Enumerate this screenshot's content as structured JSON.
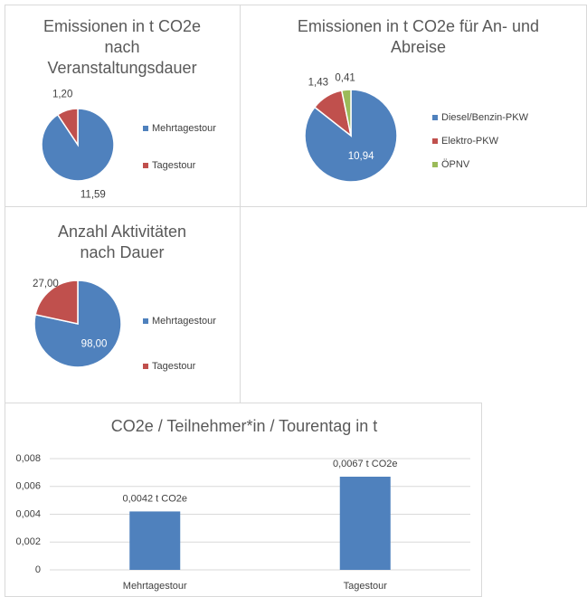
{
  "chart_data": [
    {
      "type": "pie",
      "title": "Emissionen in t CO2e nach Veranstaltungsdauer",
      "categories": [
        "Mehrtagestour",
        "Tagestour"
      ],
      "values": [
        11.59,
        1.2
      ],
      "value_labels": [
        "11,59",
        "1,20"
      ],
      "colors": [
        "#4f81bd",
        "#c0504d"
      ],
      "legend": "right"
    },
    {
      "type": "pie",
      "title": "Emissionen in t CO2e für An- und Abreise",
      "categories": [
        "Diesel/Benzin-PKW",
        "Elektro-PKW",
        "ÖPNV"
      ],
      "values": [
        10.94,
        1.43,
        0.41
      ],
      "value_labels": [
        "10,94",
        "1,43",
        "0,41"
      ],
      "colors": [
        "#4f81bd",
        "#c0504d",
        "#9bbb59"
      ],
      "legend": "right"
    },
    {
      "type": "pie",
      "title": "Anzahl Aktivitäten nach Dauer",
      "categories": [
        "Mehrtagestour",
        "Tagestour"
      ],
      "values": [
        98,
        27
      ],
      "value_labels": [
        "98,00",
        "27,00"
      ],
      "colors": [
        "#4f81bd",
        "#c0504d"
      ],
      "legend": "right"
    },
    {
      "type": "bar",
      "title": "CO2e / Teilnehmer*in / Tourentag in t",
      "categories": [
        "Mehrtagestour",
        "Tagestour"
      ],
      "values": [
        0.0042,
        0.0067
      ],
      "value_labels": [
        "0,0042 t CO2e",
        "0,0067 t CO2e"
      ],
      "color": "#4f81bd",
      "ylim": [
        0,
        0.008
      ],
      "yticks": [
        0,
        {
          "value": 0.002,
          "label": "0,002"
        },
        {
          "value": 0.004,
          "label": "0,004"
        },
        {
          "value": 0.006,
          "label": "0,006"
        },
        {
          "value": 0.008,
          "label": "0,008"
        }
      ],
      "grid": true
    }
  ]
}
